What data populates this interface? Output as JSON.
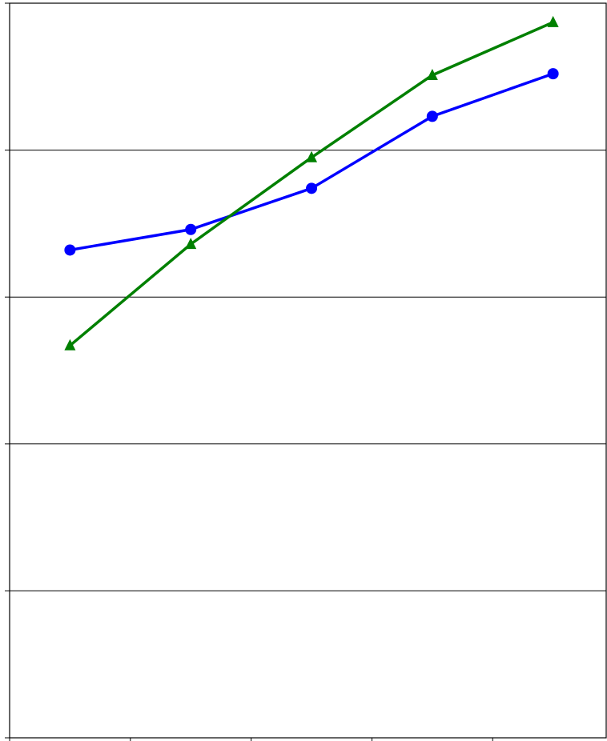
{
  "chart_data": {
    "type": "line",
    "x": [
      0.5,
      1.5,
      2.5,
      3.5,
      4.5
    ],
    "xlim": [
      0,
      4.94
    ],
    "xticks": [
      0,
      1,
      2,
      3,
      4
    ],
    "ylim": [
      0,
      5
    ],
    "yticks": [
      0,
      1,
      2,
      3,
      4,
      5
    ],
    "grid": true,
    "series": [
      {
        "color": "#0000ff",
        "marker": "circle",
        "values": [
          3.32,
          3.46,
          3.74,
          4.23,
          4.52
        ]
      },
      {
        "color": "#008000",
        "marker": "triangle",
        "values": [
          2.67,
          3.36,
          3.95,
          4.51,
          4.87
        ]
      }
    ]
  }
}
